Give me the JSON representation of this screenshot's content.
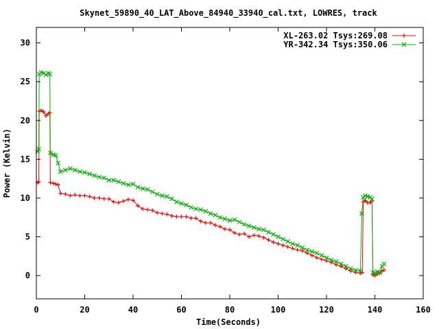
{
  "chart_data": {
    "type": "line",
    "title": "Skynet_59890_40_LAT_Above_84940_33940_cal.txt, LOWRES, track",
    "xlabel": "Time(Seconds)",
    "ylabel": "Power (Kelvin)",
    "xlim": [
      0,
      160
    ],
    "ylim": [
      -3,
      32
    ],
    "xticks": [
      0,
      20,
      40,
      60,
      80,
      100,
      120,
      140,
      160
    ],
    "yticks": [
      0,
      5,
      10,
      15,
      20,
      25,
      30
    ],
    "grid": false,
    "legend_position": "top-right",
    "series": [
      {
        "name": "XL-263.02 Tsys:269.08",
        "color": "#ff0000",
        "marker": "plus",
        "points": [
          [
            0.5,
            12.0
          ],
          [
            1.0,
            12.1
          ],
          [
            1.2,
            21.2
          ],
          [
            2,
            21.3
          ],
          [
            3,
            21.1
          ],
          [
            4,
            20.6
          ],
          [
            5,
            20.9
          ],
          [
            5.6,
            21.0
          ],
          [
            5.8,
            12.0
          ],
          [
            7,
            11.9
          ],
          [
            8,
            11.8
          ],
          [
            9,
            11.7
          ],
          [
            10,
            10.6
          ],
          [
            12,
            10.5
          ],
          [
            14,
            10.3
          ],
          [
            16,
            10.4
          ],
          [
            18,
            10.3
          ],
          [
            20,
            10.3
          ],
          [
            22,
            10.2
          ],
          [
            24,
            10.0
          ],
          [
            26,
            10.0
          ],
          [
            28,
            9.9
          ],
          [
            30,
            9.9
          ],
          [
            32,
            9.5
          ],
          [
            34,
            9.4
          ],
          [
            36,
            9.6
          ],
          [
            38,
            9.8
          ],
          [
            40,
            9.7
          ],
          [
            42,
            9.0
          ],
          [
            44,
            8.6
          ],
          [
            46,
            8.5
          ],
          [
            48,
            8.4
          ],
          [
            50,
            8.1
          ],
          [
            52,
            8.0
          ],
          [
            54,
            7.9
          ],
          [
            56,
            7.7
          ],
          [
            58,
            7.6
          ],
          [
            60,
            7.6
          ],
          [
            62,
            7.6
          ],
          [
            64,
            7.4
          ],
          [
            66,
            7.4
          ],
          [
            68,
            7.0
          ],
          [
            70,
            6.8
          ],
          [
            72,
            6.8
          ],
          [
            74,
            6.5
          ],
          [
            76,
            6.3
          ],
          [
            78,
            6.0
          ],
          [
            80,
            5.9
          ],
          [
            82,
            5.5
          ],
          [
            84,
            5.3
          ],
          [
            86,
            5.4
          ],
          [
            88,
            5.0
          ],
          [
            90,
            5.2
          ],
          [
            92,
            5.1
          ],
          [
            94,
            4.9
          ],
          [
            96,
            4.6
          ],
          [
            98,
            4.3
          ],
          [
            100,
            4.1
          ],
          [
            102,
            3.9
          ],
          [
            104,
            3.7
          ],
          [
            106,
            3.5
          ],
          [
            108,
            3.3
          ],
          [
            110,
            3.2
          ],
          [
            112,
            2.9
          ],
          [
            114,
            2.6
          ],
          [
            116,
            2.3
          ],
          [
            118,
            2.1
          ],
          [
            120,
            1.9
          ],
          [
            122,
            1.7
          ],
          [
            124,
            1.4
          ],
          [
            126,
            1.2
          ],
          [
            128,
            0.9
          ],
          [
            130,
            0.6
          ],
          [
            132,
            0.4
          ],
          [
            134,
            0.3
          ],
          [
            134.8,
            0.4
          ],
          [
            135.2,
            9.5
          ],
          [
            136,
            9.7
          ],
          [
            137,
            9.4
          ],
          [
            138,
            9.4
          ],
          [
            138.8,
            9.6
          ],
          [
            139.2,
            0.1
          ],
          [
            140,
            0.0
          ],
          [
            141,
            0.2
          ],
          [
            142,
            0.3
          ],
          [
            143,
            0.6
          ],
          [
            143.8,
            0.7
          ]
        ]
      },
      {
        "name": "YR-342.34 Tsys:350.06",
        "color": "#00b000",
        "marker": "cross",
        "points": [
          [
            0.5,
            16.0
          ],
          [
            1.0,
            16.3
          ],
          [
            1.2,
            26.0
          ],
          [
            2,
            26.2
          ],
          [
            3,
            26.1
          ],
          [
            4,
            25.9
          ],
          [
            5,
            26.1
          ],
          [
            5.6,
            26.0
          ],
          [
            5.8,
            15.8
          ],
          [
            7,
            15.6
          ],
          [
            8,
            15.5
          ],
          [
            9,
            14.5
          ],
          [
            10,
            13.4
          ],
          [
            12,
            13.6
          ],
          [
            14,
            13.8
          ],
          [
            16,
            13.6
          ],
          [
            18,
            13.4
          ],
          [
            20,
            13.3
          ],
          [
            22,
            13.1
          ],
          [
            24,
            12.9
          ],
          [
            26,
            12.7
          ],
          [
            28,
            12.6
          ],
          [
            30,
            12.3
          ],
          [
            32,
            12.3
          ],
          [
            34,
            12.1
          ],
          [
            36,
            11.9
          ],
          [
            38,
            11.7
          ],
          [
            40,
            11.8
          ],
          [
            42,
            11.4
          ],
          [
            44,
            11.2
          ],
          [
            46,
            11.1
          ],
          [
            48,
            10.8
          ],
          [
            50,
            10.5
          ],
          [
            52,
            10.3
          ],
          [
            54,
            10.2
          ],
          [
            56,
            9.9
          ],
          [
            58,
            9.5
          ],
          [
            60,
            9.3
          ],
          [
            62,
            9.1
          ],
          [
            64,
            8.8
          ],
          [
            66,
            8.6
          ],
          [
            68,
            8.5
          ],
          [
            70,
            8.3
          ],
          [
            72,
            8.0
          ],
          [
            74,
            7.8
          ],
          [
            76,
            7.5
          ],
          [
            78,
            7.3
          ],
          [
            80,
            7.1
          ],
          [
            82,
            7.2
          ],
          [
            84,
            6.9
          ],
          [
            86,
            6.6
          ],
          [
            88,
            6.4
          ],
          [
            90,
            6.2
          ],
          [
            92,
            6.0
          ],
          [
            94,
            5.9
          ],
          [
            96,
            5.6
          ],
          [
            98,
            5.3
          ],
          [
            100,
            5.0
          ],
          [
            102,
            4.7
          ],
          [
            104,
            4.4
          ],
          [
            106,
            4.1
          ],
          [
            108,
            3.9
          ],
          [
            110,
            3.6
          ],
          [
            112,
            3.3
          ],
          [
            114,
            3.1
          ],
          [
            116,
            2.9
          ],
          [
            118,
            2.6
          ],
          [
            120,
            2.3
          ],
          [
            122,
            2.0
          ],
          [
            124,
            1.8
          ],
          [
            126,
            1.5
          ],
          [
            128,
            1.2
          ],
          [
            130,
            0.9
          ],
          [
            132,
            0.7
          ],
          [
            134,
            0.6
          ],
          [
            134.6,
            8.0
          ],
          [
            135.2,
            10.1
          ],
          [
            136,
            10.3
          ],
          [
            137,
            10.2
          ],
          [
            138,
            10.1
          ],
          [
            138.8,
            9.9
          ],
          [
            139.2,
            0.4
          ],
          [
            140,
            0.3
          ],
          [
            141,
            0.5
          ],
          [
            142,
            0.4
          ],
          [
            143,
            1.2
          ],
          [
            143.8,
            1.5
          ]
        ]
      }
    ]
  }
}
